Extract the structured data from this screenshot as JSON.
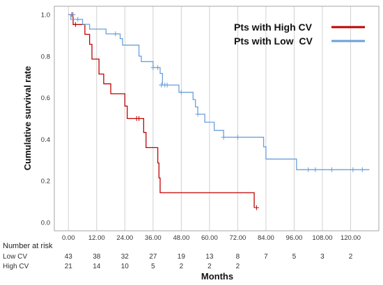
{
  "chart_data": {
    "type": "line",
    "step": true,
    "xlabel": "Months",
    "ylabel": "Cumulative survival rate",
    "xlim": [
      -6,
      132
    ],
    "ylim": [
      -0.04,
      1.04
    ],
    "x_ticks": [
      0,
      12,
      24,
      36,
      48,
      60,
      72,
      84,
      96,
      108,
      120
    ],
    "x_tick_labels": [
      "0.00",
      "12.00",
      "24.00",
      "36.00",
      "48.00",
      "60.00",
      "72.00",
      "84.00",
      "96.00",
      "108.00",
      "120.00"
    ],
    "y_ticks": [
      0,
      0.2,
      0.4,
      0.6,
      0.8,
      1.0
    ],
    "y_tick_labels": [
      "0.0",
      "0.2",
      "0.4",
      "0.6",
      "0.8",
      "1.0"
    ],
    "grid": "vertical",
    "legend_position": "top-right",
    "series": [
      {
        "name": "Pts with High CV",
        "color": "#c00000",
        "steps": [
          [
            0,
            1.0
          ],
          [
            2,
            0.952
          ],
          [
            7,
            0.905
          ],
          [
            9,
            0.857
          ],
          [
            10,
            0.786
          ],
          [
            13,
            0.714
          ],
          [
            15,
            0.667
          ],
          [
            18,
            0.619
          ],
          [
            24,
            0.56
          ],
          [
            25,
            0.5
          ],
          [
            32,
            0.433
          ],
          [
            33,
            0.36
          ],
          [
            38,
            0.286
          ],
          [
            38.5,
            0.214
          ],
          [
            39,
            0.143
          ],
          [
            76,
            0.143
          ],
          [
            79,
            0.071
          ]
        ],
        "censored": [
          [
            1.5,
            1.0
          ],
          [
            3,
            0.952
          ],
          [
            29,
            0.5
          ],
          [
            30,
            0.5
          ],
          [
            80,
            0.071
          ]
        ]
      },
      {
        "name": "Pts with Low  CV",
        "color": "#6a9fdc",
        "steps": [
          [
            0,
            1.0
          ],
          [
            1,
            0.977
          ],
          [
            6,
            0.953
          ],
          [
            9,
            0.93
          ],
          [
            16,
            0.907
          ],
          [
            22,
            0.884
          ],
          [
            23,
            0.853
          ],
          [
            30,
            0.8
          ],
          [
            31,
            0.774
          ],
          [
            36,
            0.745
          ],
          [
            39,
            0.717
          ],
          [
            40,
            0.661
          ],
          [
            47,
            0.626
          ],
          [
            53,
            0.591
          ],
          [
            54,
            0.556
          ],
          [
            55,
            0.521
          ],
          [
            58,
            0.482
          ],
          [
            62,
            0.443
          ],
          [
            66,
            0.41
          ],
          [
            83,
            0.364
          ],
          [
            84,
            0.305
          ],
          [
            97,
            0.254
          ],
          [
            128,
            0.254
          ]
        ],
        "censored": [
          [
            2,
            1.0
          ],
          [
            4,
            0.977
          ],
          [
            20,
            0.907
          ],
          [
            36,
            0.745
          ],
          [
            38,
            0.745
          ],
          [
            39.5,
            0.661
          ],
          [
            41,
            0.661
          ],
          [
            42,
            0.661
          ],
          [
            48,
            0.626
          ],
          [
            55,
            0.521
          ],
          [
            66,
            0.41
          ],
          [
            72,
            0.41
          ],
          [
            102,
            0.254
          ],
          [
            105,
            0.254
          ],
          [
            112,
            0.254
          ],
          [
            121,
            0.254
          ],
          [
            125,
            0.254
          ]
        ]
      }
    ],
    "risk_table": {
      "heading": "Number at risk",
      "rows": [
        {
          "label": "Low CV",
          "values": [
            "43",
            "38",
            "32",
            "27",
            "19",
            "13",
            "8",
            "7",
            "5",
            "3",
            "2"
          ]
        },
        {
          "label": "High CV",
          "values": [
            "21",
            "14",
            "10",
            "5",
            "2",
            "2",
            "2",
            "",
            "",
            "",
            ""
          ]
        }
      ]
    }
  }
}
